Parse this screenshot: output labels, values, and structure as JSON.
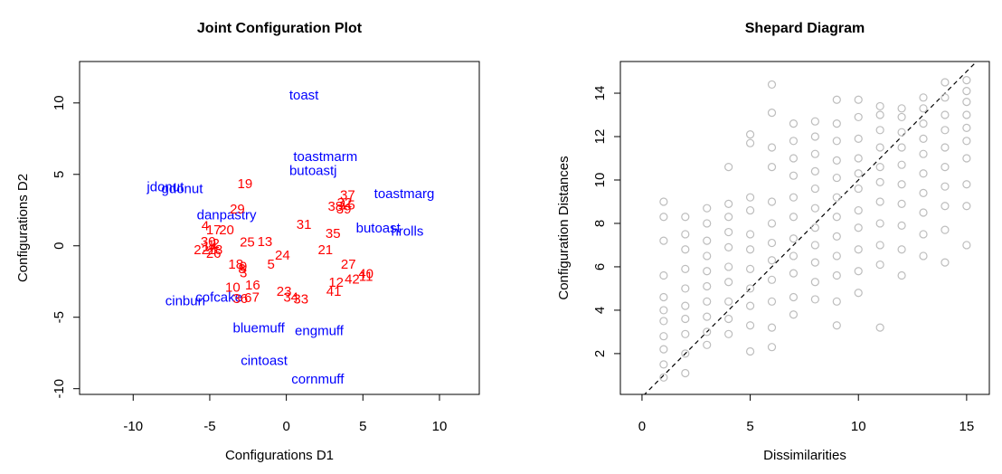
{
  "chart_data": [
    {
      "type": "text-scatter",
      "title": "Joint Configuration Plot",
      "xlabel": "Configurations D1",
      "ylabel": "Configurations D2",
      "xlim": [
        -13.5,
        12.6
      ],
      "ylim": [
        -10.4,
        12.9
      ],
      "xticks": [
        -10,
        -5,
        0,
        5,
        10
      ],
      "yticks": [
        -10,
        -5,
        0,
        5,
        10
      ],
      "series": [
        {
          "color": "#0000ff",
          "labels": [
            "toast",
            "toastmarm",
            "butoastj",
            "toastmarg",
            "jdonut",
            "gdonut",
            "danpastry",
            "butoast",
            "hrolls",
            "cinbun",
            "cofcake",
            "bluemuff",
            "engmuff",
            "cintoast",
            "cornmuff"
          ],
          "x": [
            1.15,
            2.55,
            1.75,
            7.7,
            -7.9,
            -6.8,
            -3.9,
            6.0,
            7.9,
            -6.6,
            -4.4,
            -1.8,
            2.15,
            -1.45,
            2.05
          ],
          "y": [
            10.5,
            6.2,
            5.2,
            3.6,
            4.05,
            3.95,
            2.1,
            1.2,
            0.95,
            -3.9,
            -3.65,
            -5.8,
            -6.0,
            -8.1,
            -9.4
          ]
        },
        {
          "color": "#ff0000",
          "labels": [
            "19",
            "29",
            "4",
            "17",
            "20",
            "31",
            "37",
            "38",
            "32",
            "39",
            "35",
            "25",
            "13",
            "21",
            "24",
            "22",
            "30",
            "2",
            "28",
            "26",
            "18",
            "8",
            "5",
            "3",
            "27",
            "40",
            "42",
            "11",
            "12",
            "10",
            "16",
            "36",
            "6",
            "7",
            "23",
            "34",
            "33",
            "41",
            "1",
            "9",
            "14",
            "15"
          ],
          "x": [
            -2.7,
            -3.2,
            -5.3,
            -4.75,
            -3.9,
            1.15,
            4.0,
            3.2,
            3.8,
            3.75,
            3.05,
            -2.55,
            -1.4,
            2.55,
            -0.25,
            -5.55,
            -5.1,
            -4.6,
            -4.65,
            -4.75,
            -3.3,
            -2.9,
            -1.0,
            -2.8,
            4.05,
            5.2,
            4.3,
            5.2,
            3.25,
            -3.5,
            -2.2,
            -3.0,
            -2.5,
            -2.0,
            -0.15,
            0.3,
            0.95,
            3.1,
            -4.9,
            -2.8,
            -5.0,
            4.0
          ],
          "y": [
            4.3,
            2.5,
            1.35,
            1.05,
            1.05,
            1.45,
            3.5,
            2.7,
            2.95,
            2.5,
            0.8,
            0.2,
            0.25,
            -0.35,
            -0.7,
            -0.35,
            0.25,
            0.1,
            -0.35,
            -0.6,
            -1.35,
            -1.65,
            -1.35,
            -1.95,
            -1.35,
            -2.0,
            -2.4,
            -2.2,
            -2.6,
            -2.95,
            -2.8,
            -3.75,
            -3.7,
            -3.65,
            -3.25,
            -3.65,
            -3.8,
            -3.25,
            0.0,
            -1.5,
            -0.1,
            2.8
          ]
        }
      ]
    },
    {
      "type": "scatter",
      "title": "Shepard Diagram",
      "xlabel": "Dissimilarities",
      "ylabel": "Configuration Distances",
      "xlim": [
        -1.0,
        16.05
      ],
      "ylim": [
        0.12,
        15.46
      ],
      "xticks": [
        0,
        5,
        10,
        15
      ],
      "yticks": [
        2,
        4,
        6,
        8,
        10,
        12,
        14
      ],
      "color": "#bdbdbd",
      "reference_line": {
        "slope": 1,
        "intercept": 0,
        "color": "#000000"
      },
      "x": [
        1,
        1,
        1,
        1,
        1,
        1,
        1,
        1,
        1,
        1,
        1,
        2,
        2,
        2,
        2,
        2,
        2,
        2,
        2,
        2,
        2,
        3,
        3,
        3,
        3,
        3,
        3,
        3,
        3,
        3,
        3,
        4,
        4,
        4,
        4,
        4,
        4,
        4,
        4,
        4,
        4,
        5,
        5,
        5,
        5,
        5,
        5,
        5,
        5,
        5,
        5,
        5,
        6,
        6,
        6,
        6,
        6,
        6,
        6,
        6,
        6,
        6,
        6,
        6,
        7,
        7,
        7,
        7,
        7,
        7,
        7,
        7,
        7,
        7,
        7,
        8,
        8,
        8,
        8,
        8,
        8,
        8,
        8,
        8,
        8,
        8,
        9,
        9,
        9,
        9,
        9,
        9,
        9,
        9,
        9,
        9,
        9,
        9,
        10,
        10,
        10,
        10,
        10,
        10,
        10,
        10,
        10,
        10,
        10,
        11,
        11,
        11,
        11,
        11,
        11,
        11,
        11,
        11,
        11,
        11,
        12,
        12,
        12,
        12,
        12,
        12,
        12,
        12,
        12,
        12,
        13,
        13,
        13,
        13,
        13,
        13,
        13,
        13,
        13,
        13,
        14,
        14,
        14,
        14,
        14,
        14,
        14,
        14,
        14,
        14,
        15,
        15,
        15,
        15,
        15,
        15,
        15,
        15,
        15,
        15
      ],
      "y": [
        0.9,
        1.5,
        2.2,
        2.8,
        3.5,
        4.0,
        4.6,
        5.6,
        7.2,
        8.3,
        9.0,
        1.1,
        2.0,
        2.9,
        3.6,
        4.2,
        5.0,
        5.9,
        6.8,
        7.5,
        8.3,
        2.4,
        3.0,
        3.7,
        4.4,
        5.1,
        5.8,
        6.5,
        7.2,
        8.0,
        8.7,
        2.9,
        3.6,
        4.4,
        5.3,
        6.0,
        6.9,
        7.6,
        8.3,
        8.9,
        10.6,
        2.1,
        3.3,
        4.2,
        5.0,
        5.9,
        6.8,
        7.5,
        8.6,
        9.2,
        11.7,
        12.1,
        2.3,
        3.2,
        4.4,
        5.4,
        6.3,
        7.1,
        8.0,
        9.0,
        10.6,
        11.5,
        13.1,
        14.4,
        3.8,
        4.6,
        5.7,
        6.5,
        7.3,
        8.3,
        9.2,
        10.2,
        11.0,
        11.8,
        12.6,
        4.5,
        5.3,
        6.2,
        7.0,
        7.8,
        8.7,
        9.6,
        10.4,
        11.2,
        12.0,
        12.7,
        3.3,
        4.4,
        5.6,
        6.5,
        7.4,
        8.3,
        9.2,
        10.1,
        10.9,
        11.8,
        12.6,
        13.7,
        4.8,
        5.8,
        6.8,
        7.8,
        8.6,
        9.6,
        10.3,
        11.0,
        11.9,
        12.9,
        13.7,
        3.2,
        6.1,
        7.0,
        8.0,
        9.0,
        9.9,
        10.6,
        11.5,
        12.3,
        13.0,
        13.4,
        5.6,
        6.8,
        7.9,
        8.9,
        9.8,
        10.7,
        11.5,
        12.2,
        12.9,
        13.3,
        6.5,
        7.5,
        8.5,
        9.4,
        10.3,
        11.2,
        11.9,
        12.6,
        13.3,
        13.8,
        6.2,
        7.7,
        8.8,
        9.7,
        10.6,
        11.5,
        12.3,
        13.0,
        13.8,
        14.5,
        7.0,
        8.8,
        9.8,
        11.0,
        11.8,
        12.4,
        13.0,
        13.6,
        14.1,
        14.6
      ]
    }
  ]
}
